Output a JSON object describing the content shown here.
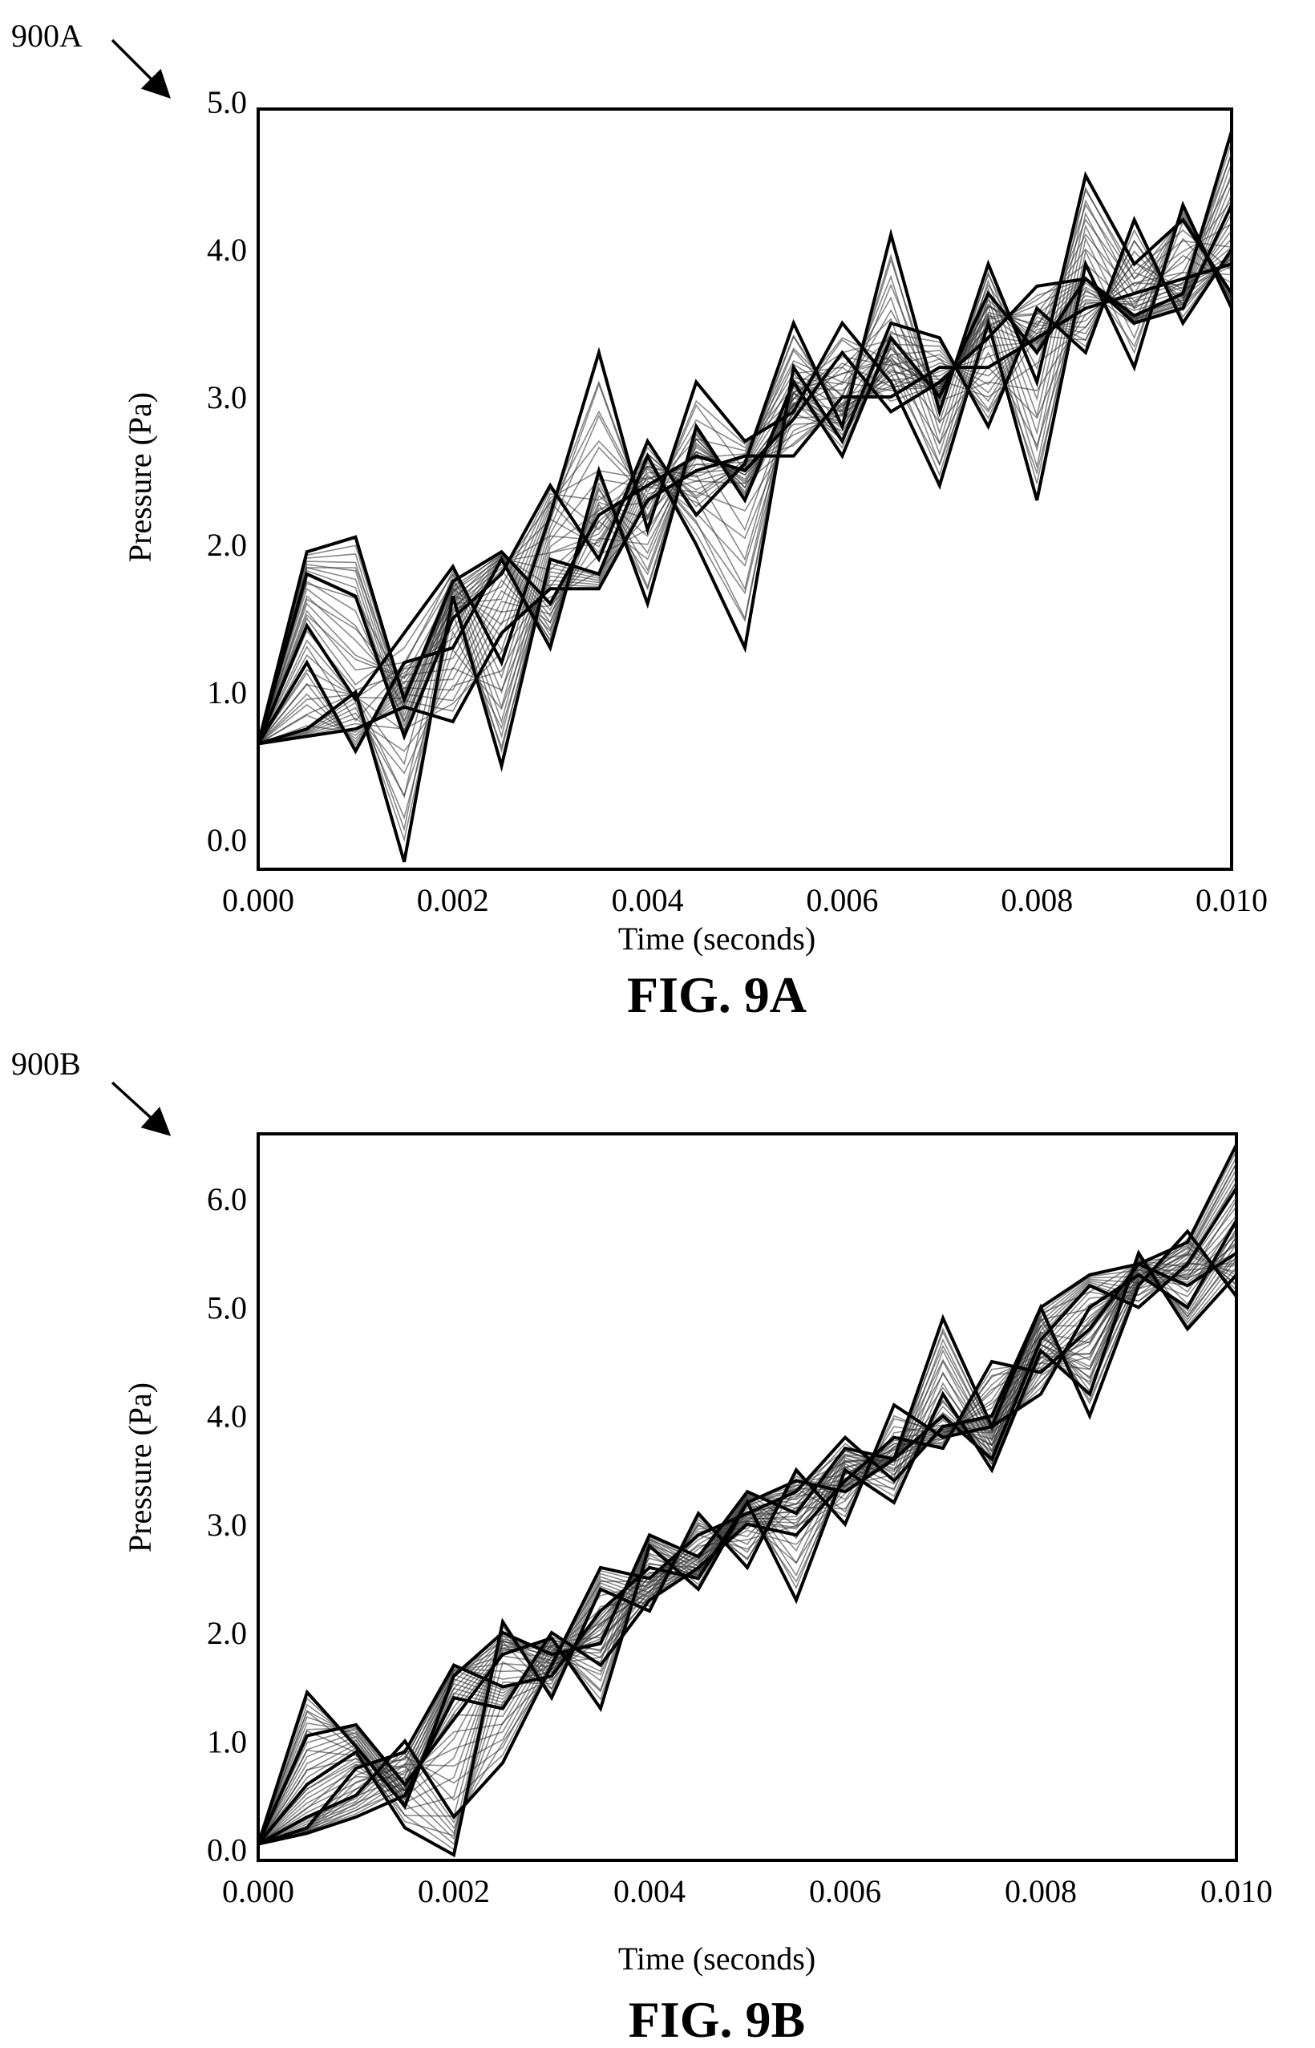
{
  "figures": [
    {
      "reference": "900A",
      "caption": "FIG. 9A",
      "chart_data": {
        "type": "line",
        "xlabel": "Time (seconds)",
        "ylabel": "Pressure (Pa)",
        "xlim": [
          0.0,
          0.01
        ],
        "ylim": [
          -0.2,
          4.95
        ],
        "x_ticks": [
          "0.000",
          "0.002",
          "0.004",
          "0.006",
          "0.008",
          "0.010"
        ],
        "y_ticks": [
          "0.0",
          "1.0",
          "2.0",
          "3.0",
          "4.0",
          "5.0"
        ],
        "x_tick_values": [
          0.0,
          0.002,
          0.004,
          0.006,
          0.008,
          0.01
        ],
        "y_tick_values": [
          0.0,
          1.0,
          2.0,
          3.0,
          4.0,
          5.0
        ],
        "grid": false,
        "legend": "none",
        "x": [
          0.0,
          0.0005,
          0.001,
          0.0015,
          0.002,
          0.0025,
          0.003,
          0.0035,
          0.004,
          0.0045,
          0.005,
          0.0055,
          0.006,
          0.0065,
          0.007,
          0.0075,
          0.008,
          0.0085,
          0.009,
          0.0095,
          0.01
        ],
        "series": [
          {
            "values": [
              0.65,
              1.95,
              2.05,
              0.95,
              1.75,
              1.95,
              1.6,
              2.2,
              2.4,
              2.6,
              2.5,
              2.85,
              3.3,
              2.9,
              3.1,
              3.4,
              3.75,
              3.8,
              3.55,
              3.7,
              4.8
            ]
          },
          {
            "values": [
              0.65,
              1.8,
              1.65,
              0.7,
              1.5,
              1.8,
              2.4,
              1.9,
              2.7,
              2.2,
              2.55,
              3.5,
              2.8,
              4.1,
              2.9,
              3.9,
              3.1,
              4.5,
              3.9,
              4.2,
              3.7
            ]
          },
          {
            "values": [
              0.65,
              1.45,
              0.95,
              1.4,
              1.85,
              1.2,
              2.2,
              3.3,
              2.1,
              3.1,
              2.7,
              2.9,
              3.5,
              3.1,
              2.4,
              3.5,
              2.3,
              3.9,
              3.2,
              4.3,
              3.6
            ]
          },
          {
            "values": [
              0.65,
              0.75,
              1.0,
              -0.15,
              1.65,
              0.5,
              1.9,
              1.8,
              2.6,
              2.0,
              1.3,
              3.2,
              2.7,
              3.5,
              3.4,
              2.8,
              3.6,
              3.3,
              4.2,
              3.5,
              4.0
            ]
          },
          {
            "values": [
              0.65,
              0.7,
              0.75,
              0.9,
              0.8,
              1.4,
              1.7,
              1.7,
              2.3,
              2.5,
              2.6,
              2.6,
              3.0,
              3.0,
              3.2,
              3.2,
              3.4,
              3.6,
              3.7,
              3.8,
              3.9
            ]
          },
          {
            "values": [
              0.65,
              1.2,
              0.6,
              1.2,
              1.3,
              1.9,
              1.3,
              2.5,
              1.6,
              2.8,
              2.3,
              3.1,
              2.6,
              3.4,
              3.0,
              3.7,
              3.3,
              3.8,
              3.5,
              3.6,
              4.3
            ]
          }
        ]
      }
    },
    {
      "reference": "900B",
      "caption": "FIG. 9B",
      "chart_data": {
        "type": "line",
        "xlabel": "Time (seconds)",
        "ylabel": "Pressure (Pa)",
        "xlim": [
          0.0,
          0.01
        ],
        "ylim": [
          -0.1,
          6.6
        ],
        "x_ticks": [
          "0.000",
          "0.002",
          "0.004",
          "0.006",
          "0.008",
          "0.010"
        ],
        "y_ticks": [
          "0.0",
          "1.0",
          "2.0",
          "3.0",
          "4.0",
          "5.0",
          "6.0"
        ],
        "x_tick_values": [
          0.0,
          0.002,
          0.004,
          0.006,
          0.008,
          0.01
        ],
        "y_tick_values": [
          0.0,
          1.0,
          2.0,
          3.0,
          4.0,
          5.0,
          6.0
        ],
        "grid": false,
        "legend": "none",
        "x": [
          0.0,
          0.0005,
          0.001,
          0.0015,
          0.002,
          0.0025,
          0.003,
          0.0035,
          0.004,
          0.0045,
          0.005,
          0.0055,
          0.006,
          0.0065,
          0.007,
          0.0075,
          0.008,
          0.0085,
          0.009,
          0.0095,
          0.01
        ],
        "series": [
          {
            "values": [
              0.05,
              1.45,
              0.95,
              0.4,
              1.6,
              2.0,
              1.8,
              1.9,
              2.9,
              2.7,
              3.3,
              3.1,
              3.7,
              3.6,
              4.9,
              3.9,
              5.0,
              5.3,
              5.4,
              5.6,
              6.5
            ]
          },
          {
            "values": [
              0.05,
              1.05,
              1.15,
              0.6,
              1.2,
              1.8,
              1.95,
              1.3,
              2.8,
              2.4,
              3.2,
              2.3,
              3.5,
              3.2,
              4.2,
              3.5,
              4.6,
              4.2,
              5.5,
              4.8,
              5.3
            ]
          },
          {
            "values": [
              0.05,
              0.6,
              0.9,
              0.2,
              -0.05,
              2.1,
              1.4,
              2.4,
              2.2,
              3.1,
              2.6,
              3.5,
              3.0,
              4.1,
              3.8,
              3.9,
              4.2,
              5.0,
              5.3,
              5.0,
              5.8
            ]
          },
          {
            "values": [
              0.05,
              0.3,
              0.5,
              1.0,
              0.3,
              0.8,
              1.7,
              2.6,
              2.5,
              2.9,
              3.1,
              3.3,
              3.8,
              3.4,
              3.9,
              4.0,
              5.0,
              4.0,
              5.2,
              5.7,
              5.1
            ]
          },
          {
            "values": [
              0.05,
              0.15,
              0.3,
              0.5,
              1.4,
              1.3,
              2.0,
              1.7,
              2.3,
              2.6,
              3.0,
              2.9,
              3.4,
              3.8,
              3.7,
              4.5,
              4.4,
              4.8,
              5.4,
              5.2,
              5.5
            ]
          },
          {
            "values": [
              0.05,
              0.2,
              0.75,
              0.9,
              1.7,
              1.5,
              1.6,
              2.2,
              2.6,
              2.5,
              3.2,
              3.4,
              3.3,
              3.6,
              4.0,
              3.6,
              4.7,
              5.2,
              5.0,
              5.4,
              6.1
            ]
          }
        ]
      }
    }
  ]
}
